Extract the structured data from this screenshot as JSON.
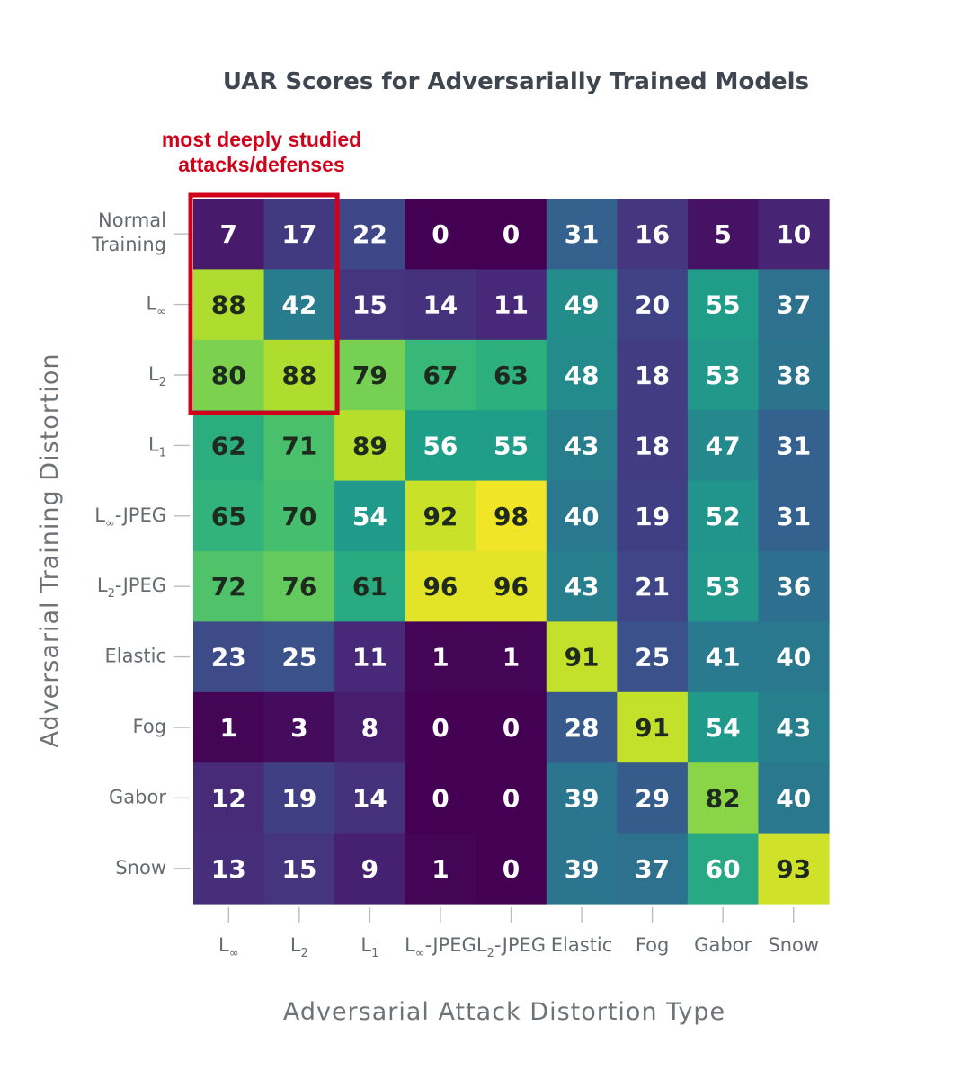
{
  "chart_data": {
    "type": "heatmap",
    "title": "UAR Scores for Adversarially Trained Models",
    "xlabel": "Adversarial Attack Distortion Type",
    "ylabel": "Adversarial Training Distortion",
    "x_categories": [
      {
        "main": "L",
        "sub": "∞",
        "suffix": ""
      },
      {
        "main": "L",
        "sub": "2",
        "suffix": ""
      },
      {
        "main": "L",
        "sub": "1",
        "suffix": ""
      },
      {
        "main": "L",
        "sub": "∞",
        "suffix": "-JPEG"
      },
      {
        "main": "L",
        "sub": "2",
        "suffix": "-JPEG"
      },
      {
        "main": "Elastic",
        "sub": "",
        "suffix": ""
      },
      {
        "main": "Fog",
        "sub": "",
        "suffix": ""
      },
      {
        "main": "Gabor",
        "sub": "",
        "suffix": ""
      },
      {
        "main": "Snow",
        "sub": "",
        "suffix": ""
      }
    ],
    "y_categories": [
      {
        "lines": [
          "Normal",
          "Training"
        ],
        "main": "",
        "sub": "",
        "suffix": ""
      },
      {
        "main": "L",
        "sub": "∞",
        "suffix": ""
      },
      {
        "main": "L",
        "sub": "2",
        "suffix": ""
      },
      {
        "main": "L",
        "sub": "1",
        "suffix": ""
      },
      {
        "main": "L",
        "sub": "∞",
        "suffix": "-JPEG"
      },
      {
        "main": "L",
        "sub": "2",
        "suffix": "-JPEG"
      },
      {
        "main": "Elastic",
        "sub": "",
        "suffix": ""
      },
      {
        "main": "Fog",
        "sub": "",
        "suffix": ""
      },
      {
        "main": "Gabor",
        "sub": "",
        "suffix": ""
      },
      {
        "main": "Snow",
        "sub": "",
        "suffix": ""
      }
    ],
    "values": [
      [
        7,
        17,
        22,
        0,
        0,
        31,
        16,
        5,
        10
      ],
      [
        88,
        42,
        15,
        14,
        11,
        49,
        20,
        55,
        37
      ],
      [
        80,
        88,
        79,
        67,
        63,
        48,
        18,
        53,
        38
      ],
      [
        62,
        71,
        89,
        56,
        55,
        43,
        18,
        47,
        31
      ],
      [
        65,
        70,
        54,
        92,
        98,
        40,
        19,
        52,
        31
      ],
      [
        72,
        76,
        61,
        96,
        96,
        43,
        21,
        53,
        36
      ],
      [
        23,
        25,
        11,
        1,
        1,
        91,
        25,
        41,
        40
      ],
      [
        1,
        3,
        8,
        0,
        0,
        28,
        91,
        54,
        43
      ],
      [
        12,
        19,
        14,
        0,
        0,
        39,
        29,
        82,
        40
      ],
      [
        13,
        15,
        9,
        1,
        0,
        39,
        37,
        60,
        93
      ]
    ],
    "value_range": [
      0,
      100
    ],
    "colormap": "viridis",
    "colors": {
      "viridis_stops": [
        "#440154",
        "#482878",
        "#3e4989",
        "#31688e",
        "#26828e",
        "#1f9e89",
        "#35b779",
        "#6ece58",
        "#b5de2b",
        "#fde725"
      ],
      "light_text": "#ffffff",
      "dark_text": "#1f2a1f"
    },
    "annotation": {
      "lines": [
        "most deeply studied",
        "attacks/defenses"
      ],
      "color": "#d0021b",
      "highlight_rows": [
        0,
        2
      ],
      "highlight_cols": [
        0,
        1
      ]
    }
  }
}
